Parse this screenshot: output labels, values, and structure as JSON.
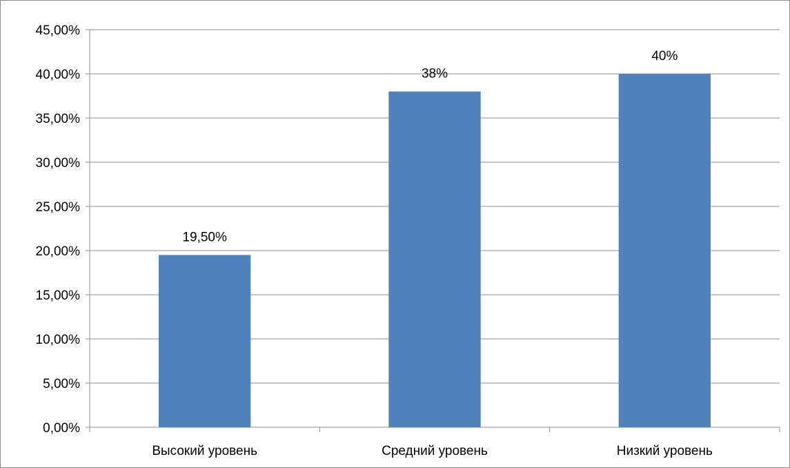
{
  "chart_data": {
    "type": "bar",
    "categories": [
      "Высокий уровень",
      "Средний уровень",
      "Низкий уровень"
    ],
    "values": [
      19.5,
      38,
      40
    ],
    "data_labels": [
      "19,50%",
      "38%",
      "40%"
    ],
    "y_ticks": [
      0,
      5,
      10,
      15,
      20,
      25,
      30,
      35,
      40,
      45
    ],
    "y_tick_labels": [
      "0,00%",
      "5,00%",
      "10,00%",
      "15,00%",
      "20,00%",
      "25,00%",
      "30,00%",
      "35,00%",
      "40,00%",
      "45,00%"
    ],
    "ylim": [
      0,
      45
    ],
    "grid": true,
    "legend": "none",
    "bar_color": "#4f81bd",
    "grid_color": "#8c8c8c"
  }
}
